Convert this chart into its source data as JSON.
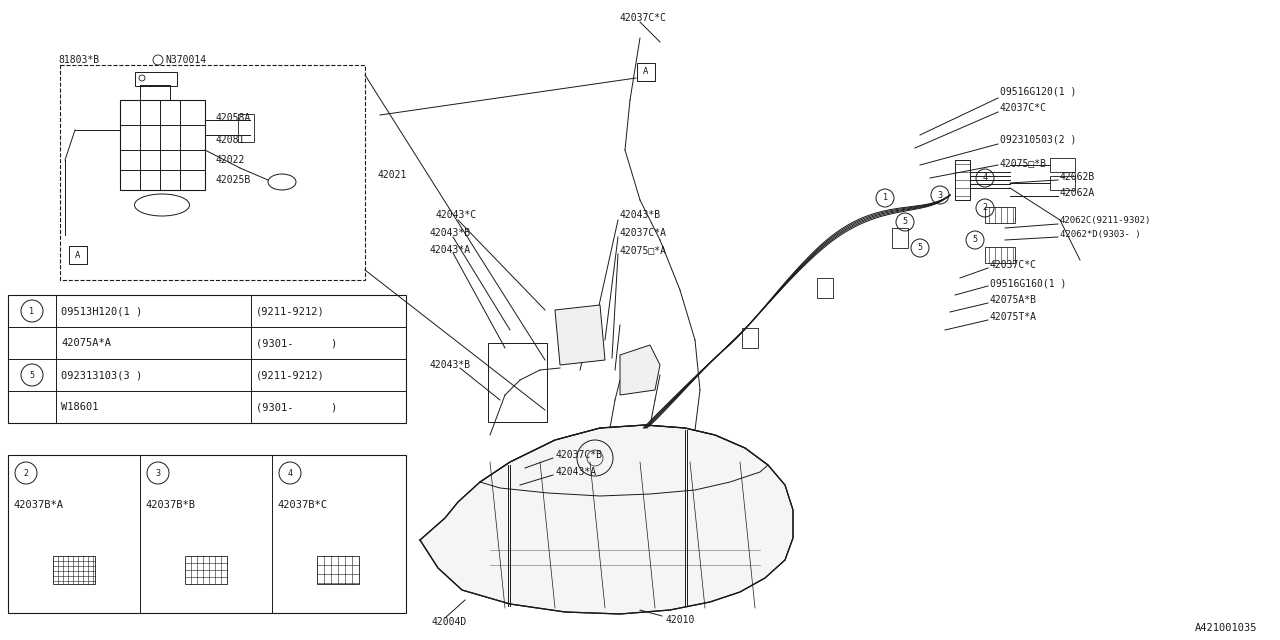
{
  "background": "#ffffff",
  "line_color": "#1a1a1a",
  "fig_width": 12.8,
  "fig_height": 6.4,
  "diagram_id": "A421001035",
  "table1_rows": [
    {
      "circle": "1",
      "part": "09513H120(1 )",
      "date": "(9211-9212)"
    },
    {
      "circle": "",
      "part": "42075A*A",
      "date": "(9301-      )"
    },
    {
      "circle": "5",
      "part": "092313103(3 )",
      "date": "(9211-9212)"
    },
    {
      "circle": "",
      "part": "W18601",
      "date": "(9301-      )"
    }
  ],
  "table2_items": [
    {
      "circle": "2",
      "part": "42037B*A"
    },
    {
      "circle": "3",
      "part": "42037B*B"
    },
    {
      "circle": "4",
      "part": "42037B*C"
    }
  ]
}
